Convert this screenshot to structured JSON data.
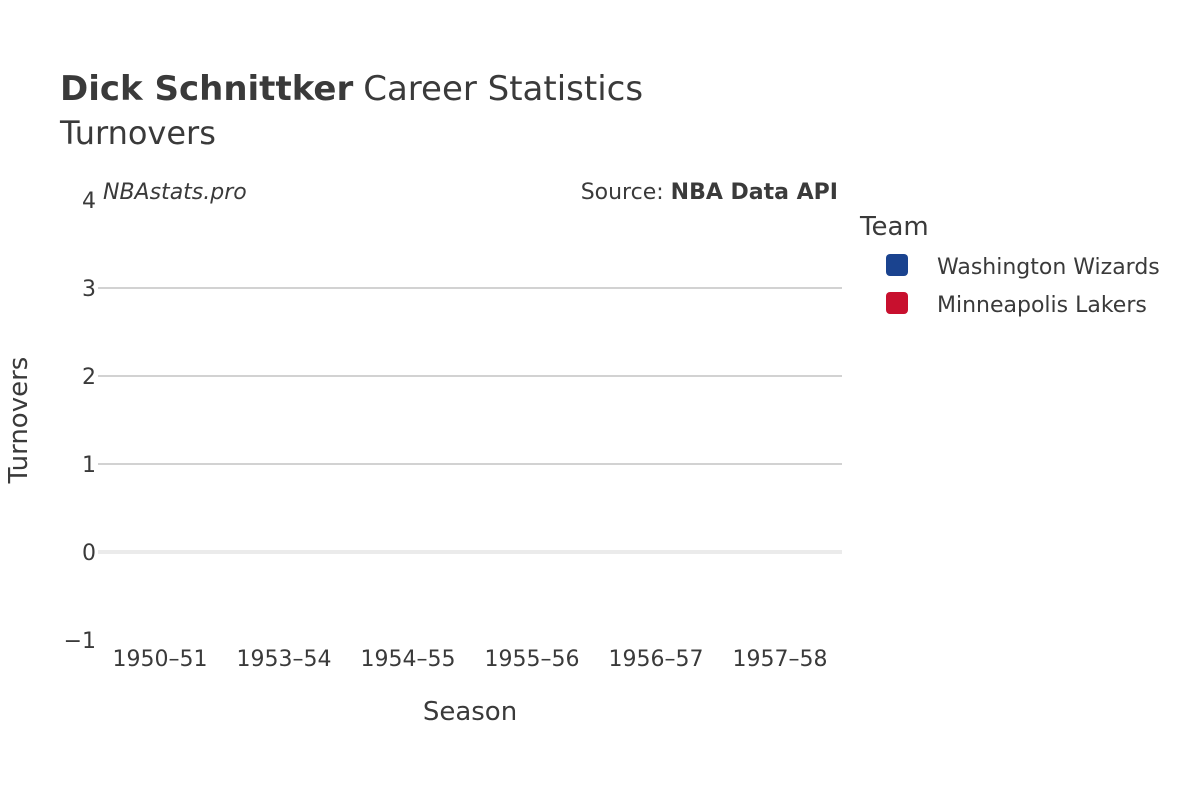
{
  "chart_data": {
    "type": "bar",
    "title_bold": "Dick Schnittker",
    "title_rest": "Career Statistics",
    "subtitle": "Turnovers",
    "xlabel": "Season",
    "ylabel": "Turnovers",
    "categories": [
      "1950–51",
      "1953–54",
      "1954–55",
      "1955–56",
      "1956–57",
      "1957–58"
    ],
    "series": [
      {
        "name": "Washington Wizards",
        "color": "#1a438f",
        "values": [
          null,
          null,
          null,
          null,
          null,
          null
        ]
      },
      {
        "name": "Minneapolis Lakers",
        "color": "#c8102e",
        "values": [
          null,
          null,
          null,
          null,
          null,
          null
        ]
      }
    ],
    "ylim": [
      -1,
      4
    ],
    "yticks": [
      -1,
      0,
      1,
      2,
      3,
      4
    ],
    "grid": true,
    "legend": {
      "title": "Team",
      "placement": "right"
    },
    "watermark": "NBAstats.pro",
    "source_prefix": "Source: ",
    "source_name": "NBA Data API"
  }
}
